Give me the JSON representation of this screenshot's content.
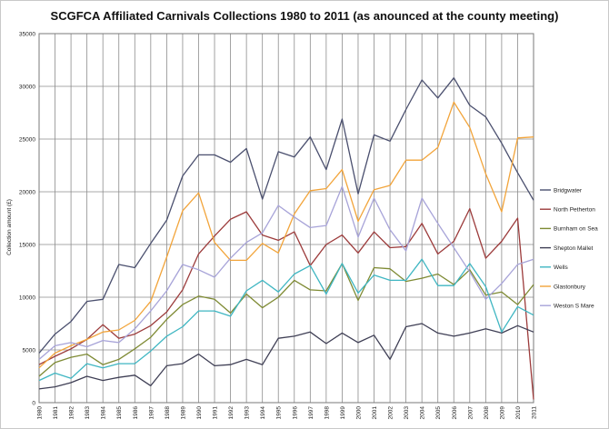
{
  "chart_data": {
    "type": "line",
    "title": "SCGFCA Affiliated Carnivals Collections 1980 to 2011  (as anounced at the county meeting)",
    "xlabel": "",
    "ylabel": "Collection amount (£)",
    "ylim": [
      0,
      35000
    ],
    "y_ticks": [
      "0",
      "5000",
      "10000",
      "15000",
      "20000",
      "25000",
      "30000",
      "35000"
    ],
    "x": [
      "1980",
      "1981",
      "1982",
      "1983",
      "1984",
      "1985",
      "1986",
      "1987",
      "1988",
      "1989",
      "1990",
      "1991",
      "1992",
      "1993",
      "1994",
      "1995",
      "1996",
      "1997",
      "1998",
      "1999",
      "2000",
      "2001",
      "2002",
      "2003",
      "2004",
      "2005",
      "2006",
      "2007",
      "2008",
      "2009",
      "2010",
      "2011"
    ],
    "grid": true,
    "legend_position": "right",
    "series": [
      {
        "name": "Bridgwater",
        "color": "#4a4f6e",
        "values": [
          4700,
          6500,
          7700,
          9600,
          9800,
          13100,
          12800,
          15100,
          17300,
          21500,
          23500,
          23500,
          22800,
          24100,
          19300,
          23800,
          23300,
          25200,
          22100,
          26900,
          19800,
          25400,
          24800,
          27800,
          30600,
          28900,
          30800,
          28200,
          27100,
          24600,
          21800,
          19200
        ]
      },
      {
        "name": "North Petherton",
        "color": "#9c3b3b",
        "values": [
          3600,
          4400,
          5100,
          6000,
          7400,
          6100,
          6500,
          7300,
          8600,
          10700,
          14100,
          15800,
          17400,
          18100,
          15900,
          15400,
          16200,
          13000,
          15000,
          15900,
          14200,
          16200,
          14700,
          14800,
          17000,
          14100,
          15300,
          18400,
          13700,
          15300,
          17500,
          300
        ]
      },
      {
        "name": "Burnham on Sea",
        "color": "#7e8a33",
        "values": [
          2500,
          3800,
          4300,
          4600,
          3600,
          4100,
          5100,
          6200,
          7900,
          9300,
          10100,
          9800,
          8500,
          10300,
          9000,
          10000,
          11600,
          10700,
          10600,
          13200,
          9700,
          12800,
          12700,
          11500,
          11800,
          12200,
          11200,
          12600,
          10200,
          10500,
          9300,
          11200
        ]
      },
      {
        "name": "Shepton Mallet",
        "color": "#3f3f55",
        "values": [
          1300,
          1500,
          1900,
          2500,
          2100,
          2400,
          2600,
          1600,
          3500,
          3700,
          4600,
          3500,
          3600,
          4100,
          3600,
          6100,
          6300,
          6700,
          5600,
          6600,
          5700,
          6400,
          4100,
          7200,
          7500,
          6600,
          6300,
          6600,
          7000,
          6600,
          7300,
          6700
        ]
      },
      {
        "name": "Wells",
        "color": "#3fb6c2",
        "values": [
          2100,
          2800,
          2300,
          3700,
          3300,
          3700,
          3700,
          4900,
          6300,
          7200,
          8700,
          8700,
          8200,
          10600,
          11600,
          10500,
          12200,
          13000,
          10300,
          13200,
          10400,
          12100,
          11600,
          11600,
          13600,
          11100,
          11100,
          13200,
          11000,
          6700,
          9100,
          8300
        ]
      },
      {
        "name": "Glastonbury",
        "color": "#f2a43a",
        "values": [
          3300,
          4700,
          5400,
          6000,
          6700,
          6900,
          7800,
          9600,
          13800,
          18200,
          19900,
          15200,
          13500,
          13500,
          15100,
          14200,
          17900,
          20100,
          20300,
          22100,
          17200,
          20200,
          20600,
          23000,
          23000,
          24200,
          28500,
          26100,
          21700,
          18100,
          25100,
          25200
        ]
      },
      {
        "name": "Weston S Mare",
        "color": "#a7a3d8",
        "values": [
          4100,
          5400,
          5700,
          5300,
          5900,
          5700,
          7000,
          8700,
          10600,
          13100,
          12600,
          11900,
          13700,
          15200,
          16100,
          18700,
          17600,
          16600,
          16800,
          20500,
          15700,
          19400,
          16400,
          14400,
          19400,
          17000,
          14700,
          12400,
          9800,
          11300,
          13100,
          13600
        ]
      }
    ]
  }
}
